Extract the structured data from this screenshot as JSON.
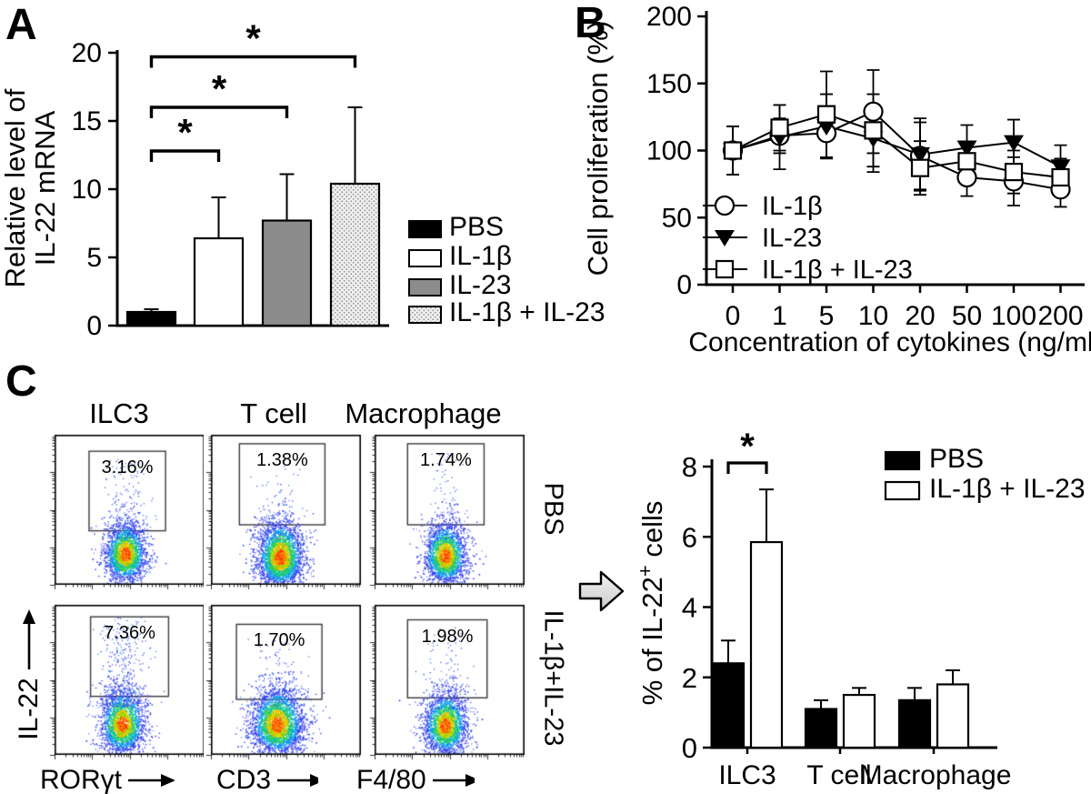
{
  "panels": {
    "a": "A",
    "b": "B",
    "c": "C"
  },
  "chart_data": [
    {
      "id": "panel-a",
      "type": "bar",
      "title": "",
      "ylabel_lines": [
        "Relative level of",
        "IL-22 mRNA"
      ],
      "ylim": [
        0,
        20
      ],
      "yticks": [
        0,
        5,
        10,
        15,
        20
      ],
      "categories": [
        "PBS",
        "IL-1β",
        "IL-23",
        "IL-1β + IL-23"
      ],
      "values": [
        1.0,
        6.4,
        7.7,
        10.4
      ],
      "errors_plus": [
        0.2,
        3.0,
        3.4,
        5.6
      ],
      "bar_styles": [
        "black",
        "white",
        "gray",
        "dotted"
      ],
      "legend": [
        "PBS",
        "IL-1β",
        "IL-23",
        "IL-1β + IL-23"
      ],
      "legend_position": "right",
      "grid": false,
      "significance": [
        {
          "from": 0,
          "to": 1,
          "y": 12.8,
          "label": "*"
        },
        {
          "from": 0,
          "to": 2,
          "y": 16.0,
          "label": "*"
        },
        {
          "from": 0,
          "to": 3,
          "y": 19.7,
          "label": "*"
        }
      ]
    },
    {
      "id": "panel-b",
      "type": "line",
      "xlabel": "Concentration of cytokines (ng/ml)",
      "ylabel": "Cell proliferation (%)",
      "ylim": [
        0,
        200
      ],
      "yticks": [
        0,
        50,
        100,
        150,
        200
      ],
      "categories": [
        "0",
        "1",
        "5",
        "10",
        "20",
        "50",
        "100",
        "200"
      ],
      "legend_position": "lower-left",
      "grid": false,
      "series": [
        {
          "name": "IL-1β",
          "marker": "open-circle",
          "values": [
            100,
            111,
            113,
            129,
            96,
            80,
            77,
            71
          ],
          "errors": [
            18,
            13,
            18,
            31,
            25,
            14,
            18,
            13
          ]
        },
        {
          "name": "IL-23",
          "marker": "filled-triangle-down",
          "values": [
            100,
            110,
            118,
            109,
            97,
            102,
            106,
            88
          ],
          "errors": [
            18,
            24,
            24,
            25,
            27,
            17,
            17,
            16
          ]
        },
        {
          "name": "IL-1β + IL-23",
          "marker": "open-square",
          "values": [
            100,
            117,
            127,
            115,
            87,
            92,
            84,
            80
          ],
          "errors": [
            18,
            17,
            32,
            27,
            20,
            13,
            16,
            14
          ]
        }
      ]
    },
    {
      "id": "panel-c-bar",
      "type": "grouped-bar",
      "ylabel_parts": [
        "% of IL-22",
        "+",
        " cells"
      ],
      "ylim": [
        0,
        8
      ],
      "yticks": [
        0,
        2,
        4,
        6,
        8
      ],
      "categories": [
        "ILC3",
        "T cell",
        "Macrophage"
      ],
      "legend": [
        "PBS",
        "IL-1β + IL-23"
      ],
      "legend_position": "upper-right",
      "grid": false,
      "series": [
        {
          "name": "PBS",
          "fill": "black",
          "values": [
            2.4,
            1.1,
            1.35
          ],
          "errors_plus": [
            0.65,
            0.25,
            0.35
          ]
        },
        {
          "name": "IL-1β + IL-23",
          "fill": "white",
          "values": [
            5.85,
            1.5,
            1.8
          ],
          "errors_plus": [
            1.5,
            0.2,
            0.4
          ]
        }
      ],
      "significance": [
        {
          "group": 0,
          "between": [
            "PBS",
            "IL-1β + IL-23"
          ],
          "label": "*"
        }
      ]
    }
  ],
  "flow": {
    "col_headers": [
      "ILC3",
      "T cell",
      "Macrophage"
    ],
    "row_labels": [
      "PBS",
      "IL-1β+IL-23"
    ],
    "x_axis_labels": [
      "RORγt",
      "CD3",
      "F4/80"
    ],
    "y_axis_label": "IL-22",
    "gate_percentages": [
      [
        "3.16%",
        "1.38%",
        "1.74%"
      ],
      [
        "7.36%",
        "1.70%",
        "1.98%"
      ]
    ]
  }
}
